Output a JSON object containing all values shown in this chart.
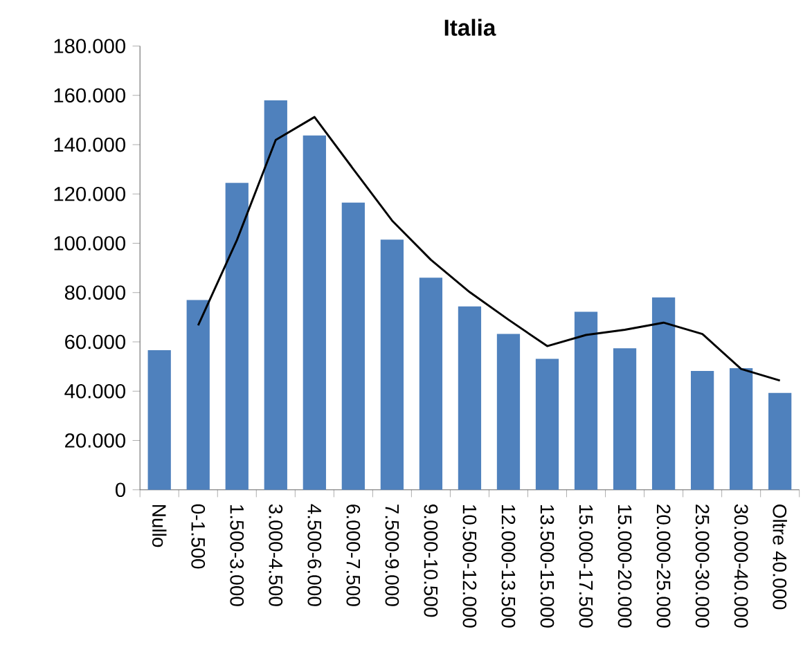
{
  "chart_data": {
    "type": "bar",
    "title": "Italia",
    "categories": [
      "Nullo",
      "0-1.500",
      "1.500-3.000",
      "3.000-4.500",
      "4.500-6.000",
      "6.000-7.500",
      "7.500-9.000",
      "9.000-10.500",
      "10.500-12.000",
      "12.000-13.500",
      "13.500-15.000",
      "15.000-17.500",
      "15.000-20.000",
      "20.000-25.000",
      "25.000-30.000",
      "30.000-40.000",
      "Oltre 40.000"
    ],
    "series": [
      {
        "color": "#4f81bd",
        "values": [
          56600,
          77000,
          124500,
          158000,
          143700,
          116500,
          101500,
          86000,
          74400,
          63200,
          53100,
          72200,
          57400,
          78000,
          48200,
          49300,
          39300
        ]
      },
      {
        "type": "line",
        "color": "#000000",
        "values": [
          null,
          66700,
          101300,
          141900,
          151200,
          130100,
          109200,
          93300,
          80200,
          69000,
          58300,
          62800,
          64900,
          67800,
          63200,
          49000,
          44300
        ]
      }
    ],
    "ylim": [
      0,
      180000
    ],
    "yticks": [
      0,
      {
        "value": 20000,
        "label": "20.000"
      },
      {
        "value": 40000,
        "label": "40.000"
      },
      {
        "value": 60000,
        "label": "60.000"
      },
      {
        "value": 80000,
        "label": "80.000"
      },
      {
        "value": 100000,
        "label": "100.000"
      },
      {
        "value": 120000,
        "label": "120.000"
      },
      {
        "value": 140000,
        "label": "140.000"
      },
      {
        "value": 160000,
        "label": "160.000"
      },
      {
        "value": 180000,
        "label": "180.000"
      }
    ],
    "grid": false
  }
}
